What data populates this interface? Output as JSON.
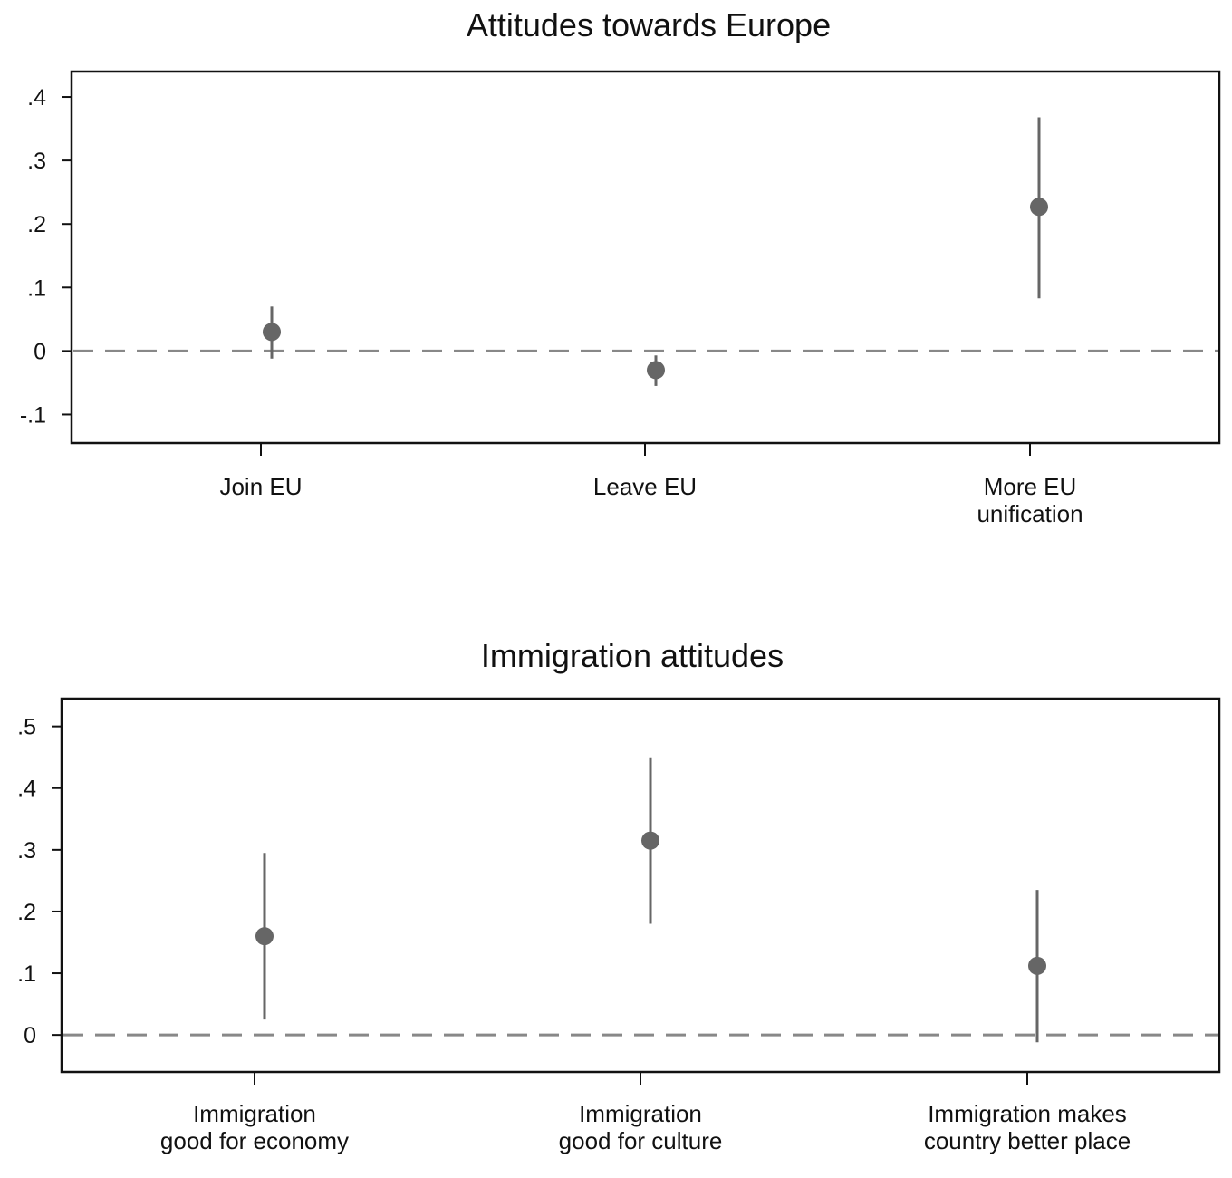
{
  "chart_data": [
    {
      "type": "scatter",
      "title": "Attitudes towards Europe",
      "categories": [
        [
          "Join EU"
        ],
        [
          "Leave EU"
        ],
        [
          "More EU",
          "unification"
        ]
      ],
      "estimates": [
        0.03,
        -0.03,
        0.227
      ],
      "ci_low": [
        -0.012,
        -0.055,
        0.083
      ],
      "ci_high": [
        0.07,
        -0.007,
        0.368
      ],
      "yticks": [
        -0.1,
        0,
        0.1,
        0.2,
        0.3,
        0.4
      ],
      "ytick_labels": [
        "-.1",
        "0",
        ".1",
        ".2",
        ".3",
        ".4"
      ],
      "ylim": [
        -0.145,
        0.44
      ],
      "reference_line": 0,
      "grid": false,
      "marker_color": "#666666",
      "reference_line_color": "#888888"
    },
    {
      "type": "scatter",
      "title": "Immigration attitudes",
      "categories": [
        [
          "Immigration",
          "good for economy"
        ],
        [
          "Immigration",
          "good for culture"
        ],
        [
          "Immigration makes",
          "country better place"
        ]
      ],
      "estimates": [
        0.16,
        0.315,
        0.112
      ],
      "ci_low": [
        0.025,
        0.18,
        -0.012
      ],
      "ci_high": [
        0.295,
        0.45,
        0.235
      ],
      "yticks": [
        0,
        0.1,
        0.2,
        0.3,
        0.4,
        0.5
      ],
      "ytick_labels": [
        "0",
        ".1",
        ".2",
        ".3",
        ".4",
        ".5"
      ],
      "ylim": [
        -0.06,
        0.545
      ],
      "reference_line": 0,
      "grid": false,
      "marker_color": "#666666",
      "reference_line_color": "#888888"
    }
  ]
}
